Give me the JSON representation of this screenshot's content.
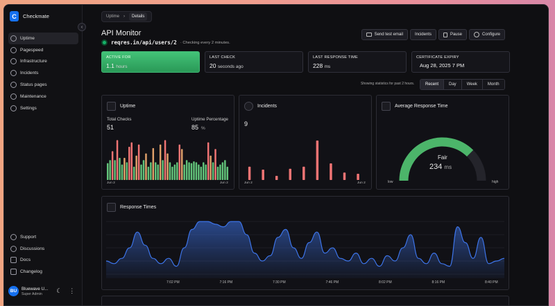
{
  "app": {
    "logo_letter": "C",
    "name": "Checkmate"
  },
  "sidebar": {
    "items": [
      {
        "label": "Uptime",
        "active": true
      },
      {
        "label": "Pagespeed"
      },
      {
        "label": "Infrastructure"
      },
      {
        "label": "Incidents"
      },
      {
        "label": "Status pages"
      },
      {
        "label": "Maintenance"
      },
      {
        "label": "Settings"
      }
    ],
    "bottom_items": [
      {
        "label": "Support"
      },
      {
        "label": "Discussions"
      },
      {
        "label": "Docs"
      },
      {
        "label": "Changelog"
      }
    ],
    "user": {
      "initials": "BU",
      "name": "Bluewave U...",
      "role": "Super Admin"
    }
  },
  "breadcrumb": {
    "parent": "Uptime",
    "current": "Details"
  },
  "monitor": {
    "title": "API Monitor",
    "url": "reqres.in/api/users/2",
    "check_note": "· Checking every 2 minutes."
  },
  "actions": [
    {
      "label": "Send test email",
      "icon": "mail-icon"
    },
    {
      "label": "Incidents",
      "icon": ""
    },
    {
      "label": "Pause",
      "icon": "pause-icon"
    },
    {
      "label": "Configure",
      "icon": "gear-icon"
    }
  ],
  "stats": [
    {
      "label": "ACTIVE FOR",
      "value": "1.1",
      "unit": "hours"
    },
    {
      "label": "LAST CHECK",
      "value": "20",
      "unit": "seconds ago"
    },
    {
      "label": "LAST RESPONSE TIME",
      "value": "228",
      "unit": "ms"
    },
    {
      "label": "CERTIFICATE EXPIRY",
      "value": "Aug 28, 2025 7 PM",
      "unit": ""
    }
  ],
  "range": {
    "note": "Showing statistics for past 2 hours.",
    "options": [
      "Recent",
      "Day",
      "Week",
      "Month"
    ],
    "selected": "Recent"
  },
  "uptime_card": {
    "title": "Uptime",
    "total_label": "Total Checks",
    "total": "51",
    "pct_label": "Uptime Percentage",
    "pct": "85",
    "pct_unit": "%",
    "x_start": "Jun 2",
    "x_end": "Jun 2",
    "bars": [
      {
        "v": 0.38,
        "s": "up"
      },
      {
        "v": 0.45,
        "s": "up"
      },
      {
        "v": 0.65,
        "s": "down"
      },
      {
        "v": 0.45,
        "s": "up"
      },
      {
        "v": 0.9,
        "s": "down"
      },
      {
        "v": 0.5,
        "s": "up"
      },
      {
        "v": 0.35,
        "s": "up"
      },
      {
        "v": 0.5,
        "s": "mid"
      },
      {
        "v": 0.4,
        "s": "up"
      },
      {
        "v": 0.75,
        "s": "down"
      },
      {
        "v": 0.85,
        "s": "down"
      },
      {
        "v": 0.3,
        "s": "up"
      },
      {
        "v": 0.55,
        "s": "mid"
      },
      {
        "v": 0.8,
        "s": "down"
      },
      {
        "v": 0.35,
        "s": "up"
      },
      {
        "v": 0.45,
        "s": "up"
      },
      {
        "v": 0.6,
        "s": "mid"
      },
      {
        "v": 0.3,
        "s": "up"
      },
      {
        "v": 0.4,
        "s": "up"
      },
      {
        "v": 0.72,
        "s": "mid"
      },
      {
        "v": 0.4,
        "s": "up"
      },
      {
        "v": 0.35,
        "s": "up"
      },
      {
        "v": 0.8,
        "s": "mid"
      },
      {
        "v": 0.45,
        "s": "up"
      },
      {
        "v": 0.9,
        "s": "down"
      },
      {
        "v": 0.6,
        "s": "mid"
      },
      {
        "v": 0.4,
        "s": "up"
      },
      {
        "v": 0.3,
        "s": "up"
      },
      {
        "v": 0.35,
        "s": "up"
      },
      {
        "v": 0.4,
        "s": "up"
      },
      {
        "v": 0.8,
        "s": "down"
      },
      {
        "v": 0.7,
        "s": "mid"
      },
      {
        "v": 0.35,
        "s": "up"
      },
      {
        "v": 0.45,
        "s": "up"
      },
      {
        "v": 0.4,
        "s": "up"
      },
      {
        "v": 0.38,
        "s": "up"
      },
      {
        "v": 0.42,
        "s": "up"
      },
      {
        "v": 0.4,
        "s": "up"
      },
      {
        "v": 0.35,
        "s": "up"
      },
      {
        "v": 0.3,
        "s": "up"
      },
      {
        "v": 0.4,
        "s": "up"
      },
      {
        "v": 0.35,
        "s": "up"
      },
      {
        "v": 0.85,
        "s": "down"
      },
      {
        "v": 0.55,
        "s": "mid"
      },
      {
        "v": 0.4,
        "s": "up"
      },
      {
        "v": 0.7,
        "s": "down"
      },
      {
        "v": 0.3,
        "s": "up"
      },
      {
        "v": 0.35,
        "s": "up"
      },
      {
        "v": 0.4,
        "s": "up"
      },
      {
        "v": 0.45,
        "s": "up"
      },
      {
        "v": 0.3,
        "s": "up"
      }
    ],
    "colors": {
      "up": "#62c37a",
      "mid": "#e0a06a",
      "down": "#f07474"
    }
  },
  "incidents_card": {
    "title": "Incidents",
    "count": "9",
    "x_start": "Jun 2",
    "x_end": "Jun 2",
    "bars": [
      0.32,
      0.25,
      0.1,
      0.27,
      0.32,
      0.95,
      0.4,
      0.18,
      0.15
    ],
    "color": "#f07474"
  },
  "response_card": {
    "title": "Average Response Time",
    "rating": "Fair",
    "value": "234",
    "unit": "ms",
    "low": "low",
    "high": "high",
    "level": 0.75,
    "color": "#4cb56a"
  },
  "response_times": {
    "title": "Response Times",
    "x_ticks": [
      "7:02 PM",
      "7:16 PM",
      "7:30 PM",
      "7:46 PM",
      "8:02 PM",
      "8:16 PM",
      "8:40 PM"
    ],
    "series": [
      0.25,
      0.2,
      0.3,
      0.5,
      0.8,
      0.55,
      0.3,
      0.2,
      0.3,
      0.15,
      0.5,
      0.85,
      1,
      1,
      0.95,
      0.9,
      1,
      1,
      0.75,
      0.4,
      0.25,
      0.35,
      0.7,
      0.85,
      0.5,
      0.3,
      0.6,
      0.8,
      0.4,
      0.5,
      0.3,
      0.25,
      0.4,
      0.2,
      0.3,
      0.15,
      0.35,
      0.25,
      0.5,
      0.75,
      0.3,
      0.2,
      0.4,
      0.2,
      0.15,
      0.9,
      0.6,
      0.3,
      0.7,
      0.2,
      0.25,
      0.3
    ],
    "color": "#3d74e8"
  }
}
